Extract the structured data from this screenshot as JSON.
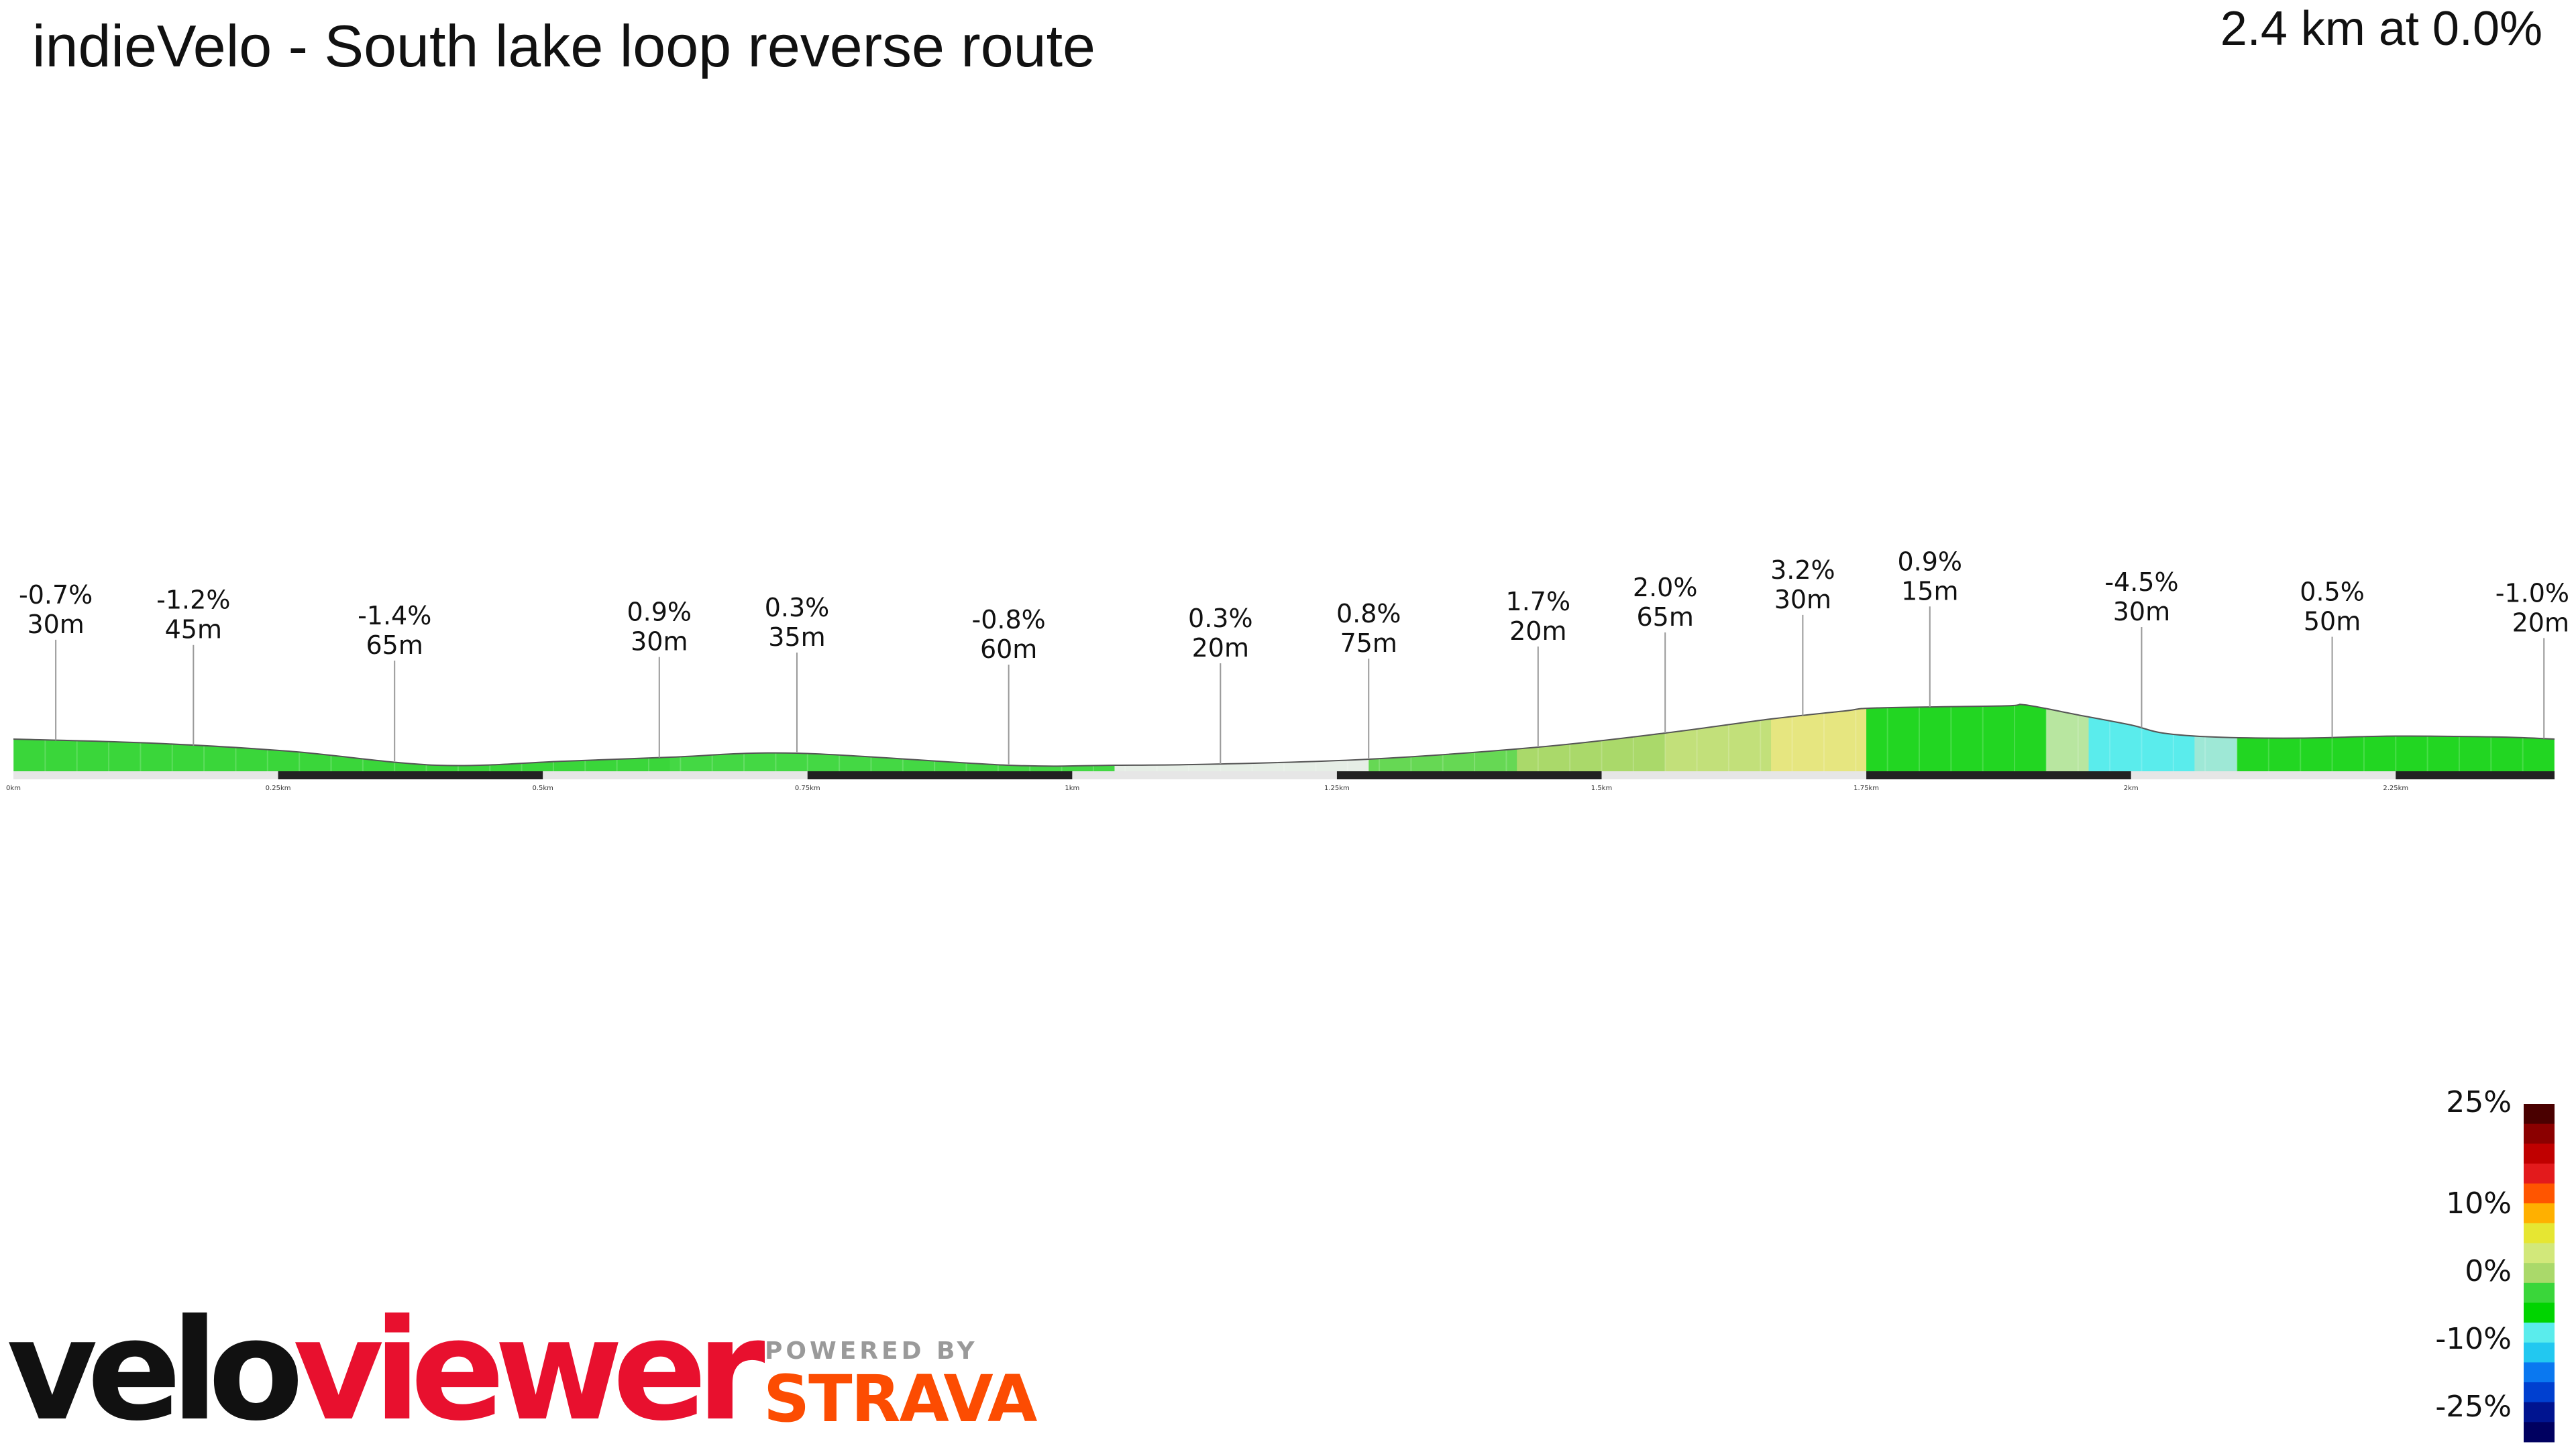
{
  "header": {
    "title": "indieVelo - South lake loop reverse route",
    "summary": "2.4 km at 0.0%"
  },
  "brand": {
    "logo_part1": "velo",
    "logo_part2": "viewer",
    "powered_by": "POWERED BY",
    "strava": "STRAVA",
    "logo_colors": {
      "velo": "#111111",
      "viewer": "#e8102e",
      "strava": "#fc4c02"
    }
  },
  "legend": {
    "labels": [
      "25%",
      "10%",
      "0%",
      "-10%",
      "-25%"
    ],
    "gradient_values": [
      25,
      10,
      0,
      -10,
      -25
    ],
    "colors": [
      "#4a0000",
      "#8b0000",
      "#c00000",
      "#e31a1c",
      "#ff5500",
      "#ffb000",
      "#e6e632",
      "#d2e87a",
      "#aad96a",
      "#3ad63a",
      "#00d400",
      "#5aecec",
      "#22c8f0",
      "#0a78f0",
      "#0040d0",
      "#001490",
      "#000060"
    ]
  },
  "chart_data": {
    "type": "area",
    "title": "indieVelo - South lake loop reverse route",
    "distance_km": 2.4,
    "avg_grade_pct": 0.0,
    "x_ticks": [
      "0km",
      "0.25km",
      "0.5km",
      "0.75km",
      "1km",
      "1.25km",
      "1.5km",
      "1.75km",
      "2km",
      "2.25km"
    ],
    "x_tick_values": [
      0,
      0.25,
      0.5,
      0.75,
      1.0,
      1.25,
      1.5,
      1.75,
      2.0,
      2.25
    ],
    "xlim": [
      0,
      2.4
    ],
    "profile_distance_km": [
      0,
      0.13,
      0.26,
      0.4,
      0.52,
      0.62,
      0.74,
      0.94,
      1.04,
      1.13,
      1.28,
      1.44,
      1.56,
      1.66,
      1.73,
      1.76,
      1.88,
      1.9,
      1.95,
      2.0,
      2.03,
      2.08,
      2.16,
      2.25,
      2.35,
      2.4
    ],
    "profile_elevation_m": [
      1.6,
      1.4,
      1.0,
      0.3,
      0.5,
      0.7,
      0.9,
      0.3,
      0.3,
      0.35,
      0.6,
      1.2,
      1.9,
      2.6,
      3.0,
      3.15,
      3.25,
      3.3,
      2.8,
      2.3,
      1.9,
      1.7,
      1.65,
      1.75,
      1.7,
      1.6
    ],
    "segments": [
      {
        "grade": "-0.7%",
        "length": "30m",
        "km": 0.04,
        "color": "#3ad63a"
      },
      {
        "grade": "-1.2%",
        "length": "45m",
        "km": 0.17,
        "color": "#3ad63a"
      },
      {
        "grade": "-1.4%",
        "length": "65m",
        "km": 0.36,
        "color": "#3ad63a"
      },
      {
        "grade": "0.9%",
        "length": "30m",
        "km": 0.61,
        "color": "#3ad63a"
      },
      {
        "grade": "0.3%",
        "length": "35m",
        "km": 0.74,
        "color": "#3ad63a"
      },
      {
        "grade": "-0.8%",
        "length": "60m",
        "km": 0.94,
        "color": "#3ad63a"
      },
      {
        "grade": "0.3%",
        "length": "20m",
        "km": 1.14,
        "color": "#f0f0f0"
      },
      {
        "grade": "0.8%",
        "length": "75m",
        "km": 1.28,
        "color": "#3ad63a"
      },
      {
        "grade": "1.7%",
        "length": "20m",
        "km": 1.44,
        "color": "#aad96a"
      },
      {
        "grade": "2.0%",
        "length": "65m",
        "km": 1.56,
        "color": "#c2e07a"
      },
      {
        "grade": "3.2%",
        "length": "30m",
        "km": 1.69,
        "color": "#e6e680"
      },
      {
        "grade": "0.9%",
        "length": "15m",
        "km": 1.81,
        "color": "#22d622"
      },
      {
        "grade": "-4.5%",
        "length": "30m",
        "km": 2.01,
        "color": "#5aecec"
      },
      {
        "grade": "0.5%",
        "length": "50m",
        "km": 2.19,
        "color": "#22d622"
      },
      {
        "grade": "-1.0%",
        "length": "20m",
        "km": 2.39,
        "color": "#22d622"
      }
    ],
    "color_bands": [
      {
        "from_km": 0.0,
        "to_km": 0.62,
        "color": "#3ad63a"
      },
      {
        "from_km": 0.62,
        "to_km": 1.04,
        "color": "#44d844"
      },
      {
        "from_km": 1.04,
        "to_km": 1.28,
        "color": "#e6eee6"
      },
      {
        "from_km": 1.28,
        "to_km": 1.42,
        "color": "#66d854"
      },
      {
        "from_km": 1.42,
        "to_km": 1.56,
        "color": "#aad96a"
      },
      {
        "from_km": 1.56,
        "to_km": 1.66,
        "color": "#c2e07a"
      },
      {
        "from_km": 1.66,
        "to_km": 1.75,
        "color": "#e6e680"
      },
      {
        "from_km": 1.75,
        "to_km": 1.92,
        "color": "#22d622"
      },
      {
        "from_km": 1.92,
        "to_km": 1.96,
        "color": "#b8e6a0"
      },
      {
        "from_km": 1.96,
        "to_km": 2.06,
        "color": "#5aecec"
      },
      {
        "from_km": 2.06,
        "to_km": 2.1,
        "color": "#9ee8d6"
      },
      {
        "from_km": 2.1,
        "to_km": 2.4,
        "color": "#22d622"
      }
    ],
    "grid": false
  }
}
